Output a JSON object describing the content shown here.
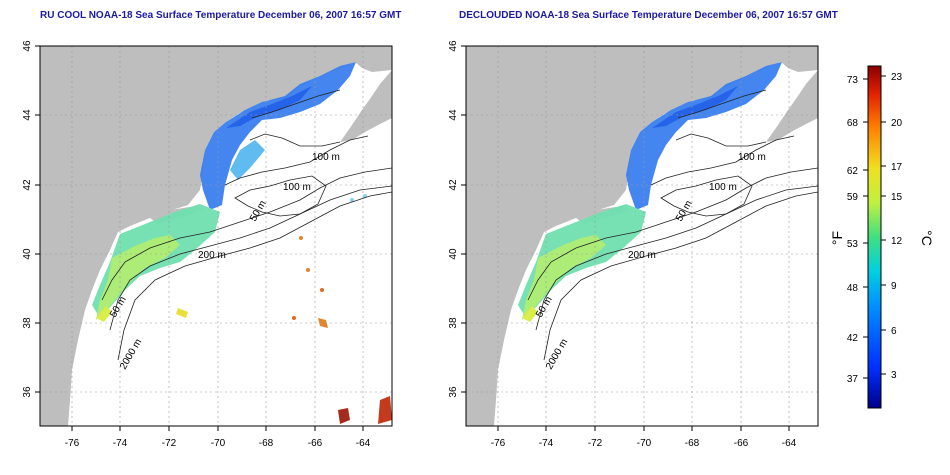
{
  "panels": [
    {
      "title": "RU COOL NOAA-18 Sea Surface Temperature December 06, 2007 16:57 GMT",
      "contour_labels": [
        "100 m",
        "100 m",
        "50 m",
        "200 m",
        "50 m",
        "2000 m"
      ]
    },
    {
      "title": "DECLOUDED NOAA-18 Sea Surface Temperature December 06, 2007 16:57 GMT",
      "contour_labels": [
        "100 m",
        "100 m",
        "50 m",
        "200 m",
        "50 m",
        "2000 m"
      ]
    }
  ],
  "axes": {
    "lon_ticks": [
      "-76",
      "-74",
      "-72",
      "-70",
      "-68",
      "-66",
      "-64"
    ],
    "lat_ticks": [
      "46",
      "44",
      "42",
      "40",
      "38",
      "36"
    ],
    "lon_range": [
      -77,
      -63
    ],
    "lat_range": [
      35,
      46
    ],
    "grid": "dotted"
  },
  "colorbar": {
    "fahrenheit_ticks": [
      "73",
      "68",
      "62",
      "59",
      "53",
      "48",
      "42",
      "37"
    ],
    "celsius_ticks": [
      "23",
      "20",
      "17",
      "15",
      "12",
      "9",
      "6",
      "3"
    ],
    "fahrenheit_unit": "°F",
    "celsius_unit": "°C",
    "colors": [
      "#00008b",
      "#0030ff",
      "#0090ff",
      "#00d0e0",
      "#40e080",
      "#c0f040",
      "#f0e020",
      "#ff8000",
      "#e02000",
      "#8b0000"
    ]
  },
  "colors": {
    "land": "#bebebe",
    "title": "#1a1aa0"
  }
}
